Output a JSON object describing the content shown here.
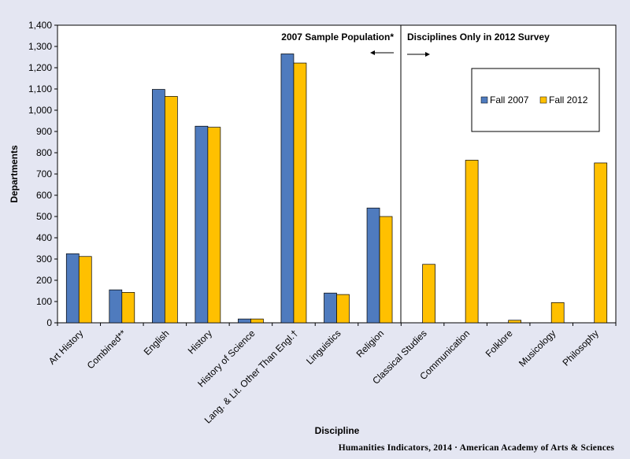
{
  "chart_data": {
    "type": "bar",
    "xlabel": "Discipline",
    "ylabel": "Departments",
    "ylim": [
      0,
      1400
    ],
    "ytick_step": 100,
    "categories": [
      "Art History",
      "Combined**",
      "English",
      "History",
      "History of Science",
      "Lang. & Lit. Other Than Engl.†",
      "Linguistics",
      "Religion",
      "Classical Studies",
      "Communication",
      "Folklore",
      "Musicology",
      "Philosophy"
    ],
    "series": [
      {
        "name": "Fall 2007",
        "color": "#4f7bbe",
        "values": [
          325,
          155,
          1098,
          925,
          18,
          1265,
          140,
          540,
          null,
          null,
          null,
          null,
          null
        ]
      },
      {
        "name": "Fall 2012",
        "color": "#ffc000",
        "values": [
          312,
          143,
          1065,
          920,
          18,
          1222,
          133,
          500,
          275,
          765,
          12,
          95,
          752
        ]
      }
    ],
    "legend": "inside-top-right",
    "grid": false,
    "annotations": {
      "left_section": "2007  Sample Population*",
      "right_section": "Disciplines  Only  in 2012  Survey"
    },
    "credit": "Humanities  Indicators, 2014 · American Academy of Arts & Sciences"
  }
}
